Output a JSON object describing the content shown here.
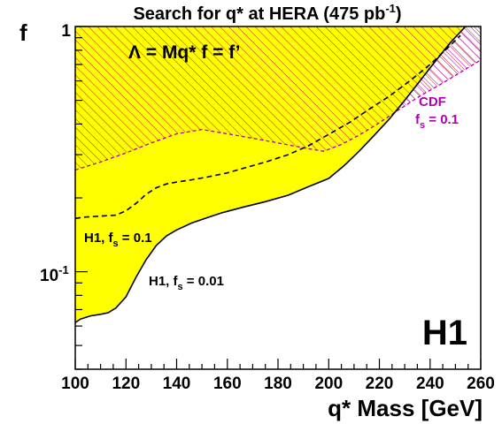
{
  "chart_data": {
    "type": "area",
    "title": "Search for q* at HERA (475 pb",
    "title_sup": "-1",
    "title_close": ")",
    "xlabel": "q* Mass [GeV]",
    "ylabel": "f",
    "xlim": [
      100,
      260
    ],
    "ylim": [
      0.04,
      1
    ],
    "yscale": "log",
    "xticks": [
      100,
      120,
      140,
      160,
      180,
      200,
      220,
      240,
      260
    ],
    "ytick_labels": {
      "one": "1",
      "tenth_base": "10",
      "tenth_exp": "-1"
    },
    "grid": false,
    "colors": {
      "excluded_fill": "#ffff00",
      "hatch": "#c02020",
      "cdf": "#b000b0",
      "line": "#000000"
    },
    "annotations": {
      "lambda": "Λ = Mq*   f = f’",
      "cdf_name": "CDF",
      "cdf_fs_base": "f",
      "cdf_fs_sub": "s",
      "cdf_fs_val": " = 0.1",
      "h1_fs01_name": "H1, f",
      "h1_fs01_sub": "s",
      "h1_fs01_val": " = 0.1",
      "h1_fs001_name": "H1, f",
      "h1_fs001_sub": "s",
      "h1_fs001_val": " = 0.01",
      "experiment": "H1"
    },
    "series": [
      {
        "id": "h1_fs001",
        "style": "solid",
        "x": [
          100,
          102,
          106,
          110,
          113,
          116,
          120,
          124,
          128,
          132,
          136,
          140,
          146,
          152,
          158,
          166,
          175,
          184,
          192,
          200,
          206,
          212,
          218,
          224,
          230,
          236,
          242,
          248,
          254
        ],
        "y": [
          0.062,
          0.064,
          0.066,
          0.067,
          0.068,
          0.071,
          0.079,
          0.095,
          0.112,
          0.128,
          0.14,
          0.148,
          0.158,
          0.166,
          0.174,
          0.183,
          0.193,
          0.205,
          0.222,
          0.24,
          0.27,
          0.31,
          0.36,
          0.42,
          0.5,
          0.6,
          0.72,
          0.86,
          1.0
        ]
      },
      {
        "id": "h1_fs01",
        "style": "dashed",
        "x": [
          100,
          104,
          108,
          112,
          116,
          120,
          124,
          128,
          132,
          136,
          140,
          146,
          152,
          160,
          168,
          176,
          184,
          192,
          200,
          208,
          216,
          224,
          232,
          240,
          246,
          252
        ],
        "y": [
          0.165,
          0.167,
          0.168,
          0.169,
          0.17,
          0.177,
          0.19,
          0.207,
          0.22,
          0.228,
          0.232,
          0.237,
          0.243,
          0.253,
          0.267,
          0.282,
          0.3,
          0.326,
          0.363,
          0.405,
          0.46,
          0.52,
          0.6,
          0.7,
          0.8,
          0.92
        ]
      },
      {
        "id": "cdf_fs01",
        "style": "hatched",
        "x": [
          100,
          110,
          120,
          130,
          140,
          150,
          160,
          170,
          180,
          190,
          198,
          205,
          212,
          220,
          228,
          236,
          244,
          252,
          260
        ],
        "y": [
          0.26,
          0.28,
          0.305,
          0.335,
          0.365,
          0.38,
          0.365,
          0.35,
          0.335,
          0.32,
          0.31,
          0.33,
          0.36,
          0.405,
          0.46,
          0.52,
          0.58,
          0.65,
          0.73
        ]
      }
    ]
  }
}
